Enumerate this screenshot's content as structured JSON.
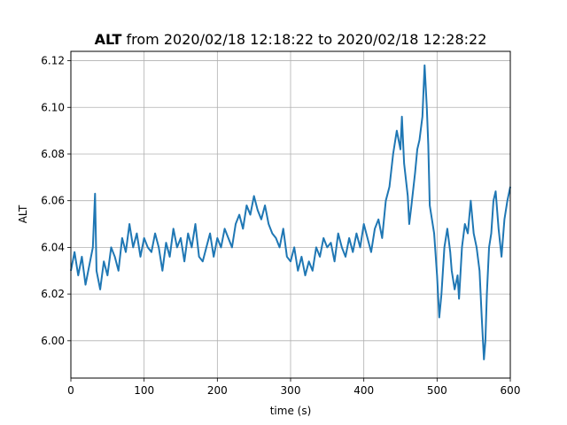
{
  "chart_data": {
    "type": "line",
    "title_bold": "ALT",
    "title_rest": " from 2020/02/18 12:18:22 to 2020/02/18 12:28:22",
    "xlabel": "time (s)",
    "ylabel": "ALT",
    "xlim": [
      0,
      600
    ],
    "ylim": [
      5.984,
      6.124
    ],
    "xticks": [
      "0",
      "100",
      "200",
      "300",
      "400",
      "500",
      "600"
    ],
    "yticks": [
      "6.00",
      "6.02",
      "6.04",
      "6.06",
      "6.08",
      "6.10",
      "6.12"
    ],
    "grid": true,
    "line_color": "#1f77b4",
    "series": [
      {
        "points": [
          [
            0,
            6.03
          ],
          [
            5,
            6.038
          ],
          [
            10,
            6.028
          ],
          [
            15,
            6.036
          ],
          [
            20,
            6.024
          ],
          [
            25,
            6.032
          ],
          [
            30,
            6.04
          ],
          [
            33,
            6.063
          ],
          [
            35,
            6.03
          ],
          [
            40,
            6.022
          ],
          [
            45,
            6.034
          ],
          [
            50,
            6.028
          ],
          [
            55,
            6.04
          ],
          [
            60,
            6.036
          ],
          [
            65,
            6.03
          ],
          [
            70,
            6.044
          ],
          [
            75,
            6.038
          ],
          [
            80,
            6.05
          ],
          [
            85,
            6.04
          ],
          [
            90,
            6.046
          ],
          [
            95,
            6.036
          ],
          [
            100,
            6.044
          ],
          [
            105,
            6.04
          ],
          [
            110,
            6.038
          ],
          [
            115,
            6.046
          ],
          [
            120,
            6.04
          ],
          [
            125,
            6.03
          ],
          [
            130,
            6.042
          ],
          [
            135,
            6.036
          ],
          [
            140,
            6.048
          ],
          [
            145,
            6.04
          ],
          [
            150,
            6.044
          ],
          [
            155,
            6.034
          ],
          [
            160,
            6.046
          ],
          [
            165,
            6.04
          ],
          [
            170,
            6.05
          ],
          [
            175,
            6.036
          ],
          [
            180,
            6.034
          ],
          [
            185,
            6.04
          ],
          [
            190,
            6.046
          ],
          [
            195,
            6.036
          ],
          [
            200,
            6.044
          ],
          [
            205,
            6.04
          ],
          [
            210,
            6.048
          ],
          [
            215,
            6.044
          ],
          [
            220,
            6.04
          ],
          [
            225,
            6.05
          ],
          [
            230,
            6.054
          ],
          [
            235,
            6.048
          ],
          [
            240,
            6.058
          ],
          [
            245,
            6.054
          ],
          [
            250,
            6.062
          ],
          [
            255,
            6.056
          ],
          [
            260,
            6.052
          ],
          [
            265,
            6.058
          ],
          [
            270,
            6.05
          ],
          [
            275,
            6.046
          ],
          [
            280,
            6.044
          ],
          [
            285,
            6.04
          ],
          [
            290,
            6.048
          ],
          [
            295,
            6.036
          ],
          [
            300,
            6.034
          ],
          [
            305,
            6.04
          ],
          [
            310,
            6.03
          ],
          [
            315,
            6.036
          ],
          [
            320,
            6.028
          ],
          [
            325,
            6.034
          ],
          [
            330,
            6.03
          ],
          [
            335,
            6.04
          ],
          [
            340,
            6.036
          ],
          [
            345,
            6.044
          ],
          [
            350,
            6.04
          ],
          [
            355,
            6.042
          ],
          [
            360,
            6.034
          ],
          [
            365,
            6.046
          ],
          [
            370,
            6.04
          ],
          [
            375,
            6.036
          ],
          [
            380,
            6.044
          ],
          [
            385,
            6.038
          ],
          [
            390,
            6.046
          ],
          [
            395,
            6.04
          ],
          [
            400,
            6.05
          ],
          [
            405,
            6.044
          ],
          [
            410,
            6.038
          ],
          [
            415,
            6.048
          ],
          [
            420,
            6.052
          ],
          [
            425,
            6.044
          ],
          [
            430,
            6.06
          ],
          [
            435,
            6.066
          ],
          [
            440,
            6.08
          ],
          [
            445,
            6.09
          ],
          [
            450,
            6.082
          ],
          [
            452,
            6.096
          ],
          [
            455,
            6.076
          ],
          [
            460,
            6.062
          ],
          [
            462,
            6.05
          ],
          [
            465,
            6.058
          ],
          [
            470,
            6.072
          ],
          [
            473,
            6.082
          ],
          [
            476,
            6.086
          ],
          [
            480,
            6.096
          ],
          [
            483,
            6.118
          ],
          [
            486,
            6.1
          ],
          [
            488,
            6.084
          ],
          [
            490,
            6.058
          ],
          [
            493,
            6.052
          ],
          [
            496,
            6.046
          ],
          [
            500,
            6.028
          ],
          [
            503,
            6.01
          ],
          [
            506,
            6.02
          ],
          [
            510,
            6.04
          ],
          [
            514,
            6.048
          ],
          [
            518,
            6.038
          ],
          [
            520,
            6.03
          ],
          [
            524,
            6.022
          ],
          [
            528,
            6.028
          ],
          [
            530,
            6.018
          ],
          [
            534,
            6.04
          ],
          [
            538,
            6.05
          ],
          [
            542,
            6.046
          ],
          [
            546,
            6.06
          ],
          [
            550,
            6.046
          ],
          [
            554,
            6.04
          ],
          [
            558,
            6.03
          ],
          [
            561,
            6.01
          ],
          [
            564,
            5.992
          ],
          [
            566,
            6.0
          ],
          [
            568,
            6.02
          ],
          [
            571,
            6.04
          ],
          [
            574,
            6.046
          ],
          [
            577,
            6.06
          ],
          [
            580,
            6.064
          ],
          [
            584,
            6.048
          ],
          [
            588,
            6.036
          ],
          [
            592,
            6.052
          ],
          [
            596,
            6.06
          ],
          [
            600,
            6.066
          ]
        ]
      }
    ]
  }
}
